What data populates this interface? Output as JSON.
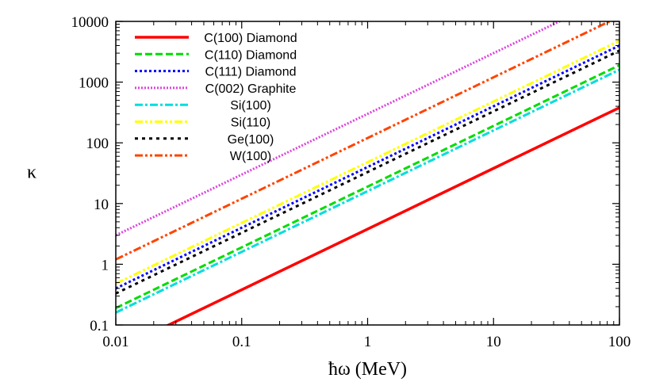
{
  "chart_data": {
    "type": "line",
    "xlabel": "ħω (MeV)",
    "ylabel": "κ",
    "xscale": "log",
    "yscale": "log",
    "xlim": [
      0.01,
      100
    ],
    "ylim": [
      0.1,
      10000
    ],
    "x_ticks": [
      {
        "value": 0.01,
        "label": "0.01"
      },
      {
        "value": 0.1,
        "label": "0.1"
      },
      {
        "value": 1,
        "label": "1"
      },
      {
        "value": 10,
        "label": "10"
      },
      {
        "value": 100,
        "label": "100"
      }
    ],
    "y_ticks": [
      {
        "value": 0.1,
        "label": "0.1"
      },
      {
        "value": 1,
        "label": "1"
      },
      {
        "value": 10,
        "label": "10"
      },
      {
        "value": 100,
        "label": "100"
      },
      {
        "value": 1000,
        "label": "1000"
      },
      {
        "value": 10000,
        "label": "10000"
      }
    ],
    "grid": false,
    "legend_position": "top-left",
    "series": [
      {
        "name": "C(100) Diamond",
        "color": "#ff0000",
        "style": "solid",
        "x": [
          0.01,
          100
        ],
        "y": [
          0.038,
          380
        ]
      },
      {
        "name": "C(110) Diamond",
        "color": "#00dd00",
        "style": "dashed",
        "x": [
          0.01,
          100
        ],
        "y": [
          0.19,
          1900
        ]
      },
      {
        "name": "C(111) Diamond",
        "color": "#0000ff",
        "style": "dotted",
        "x": [
          0.01,
          100
        ],
        "y": [
          0.4,
          4000
        ]
      },
      {
        "name": "C(002) Graphite",
        "color": "#dd44dd",
        "style": "dotted-fine",
        "x": [
          0.01,
          100
        ],
        "y": [
          3.0,
          30000
        ]
      },
      {
        "name": "Si(100)",
        "color": "#00dddd",
        "style": "dash-dot",
        "x": [
          0.01,
          100
        ],
        "y": [
          0.16,
          1600
        ]
      },
      {
        "name": "Si(110)",
        "color": "#ffff00",
        "style": "dash-dot-dot",
        "x": [
          0.01,
          100
        ],
        "y": [
          0.48,
          4800
        ]
      },
      {
        "name": "Ge(100)",
        "color": "#000000",
        "style": "dotted-wide",
        "x": [
          0.01,
          100
        ],
        "y": [
          0.33,
          3300
        ]
      },
      {
        "name": "W(100)",
        "color": "#ff4400",
        "style": "dash-dot-dot",
        "x": [
          0.01,
          100
        ],
        "y": [
          1.2,
          12000
        ]
      }
    ]
  }
}
